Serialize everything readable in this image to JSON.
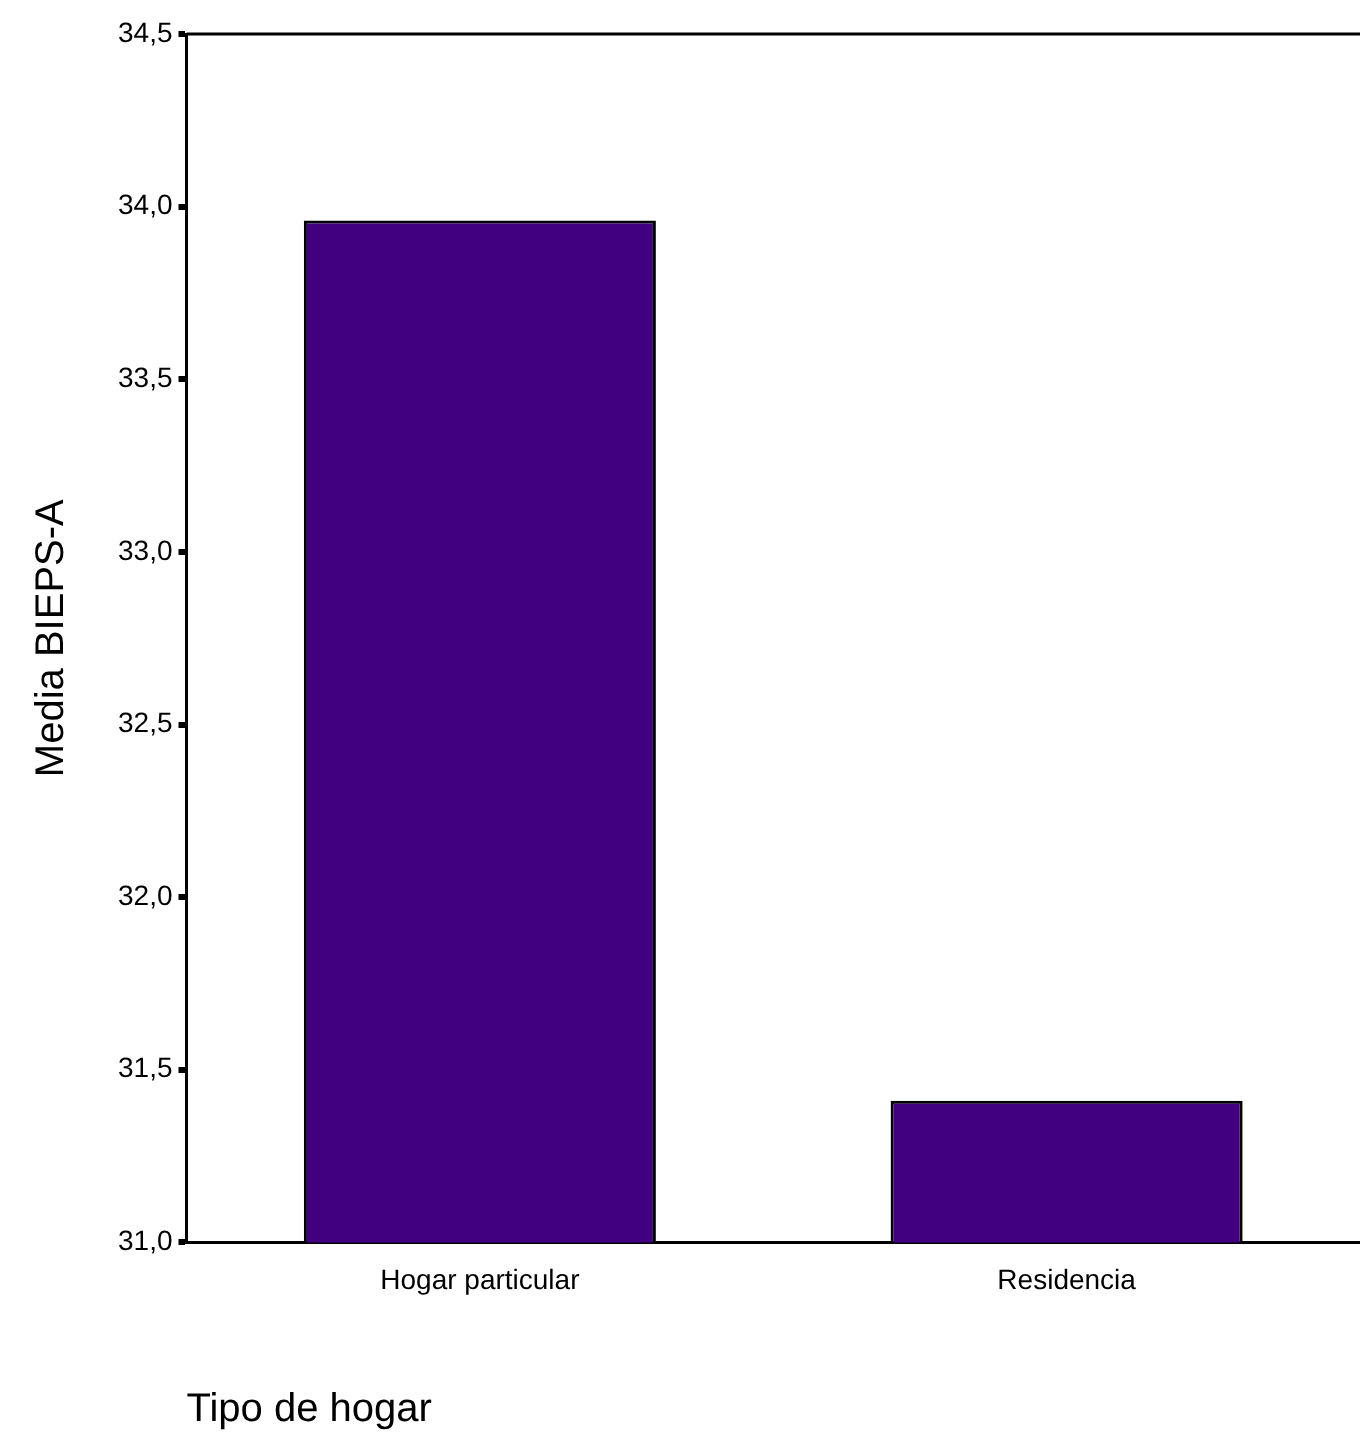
{
  "chart_data": {
    "type": "bar",
    "xlabel": "Tipo de hogar",
    "ylabel": "Media BIEPS-A",
    "categories": [
      "Hogar particular",
      "Residencia"
    ],
    "values": [
      33.96,
      31.41
    ],
    "color": "#400080",
    "ylim": [
      31.0,
      34.5
    ],
    "yticks": [
      {
        "value": 31.0,
        "label": "31,0"
      },
      {
        "value": 31.5,
        "label": "31,5"
      },
      {
        "value": 32.0,
        "label": "32,0"
      },
      {
        "value": 32.5,
        "label": "32,5"
      },
      {
        "value": 33.0,
        "label": "33,0"
      },
      {
        "value": 33.5,
        "label": "33,5"
      },
      {
        "value": 34.0,
        "label": "34,0"
      },
      {
        "value": 34.5,
        "label": "34,5"
      }
    ],
    "grid": false,
    "legend": false
  }
}
